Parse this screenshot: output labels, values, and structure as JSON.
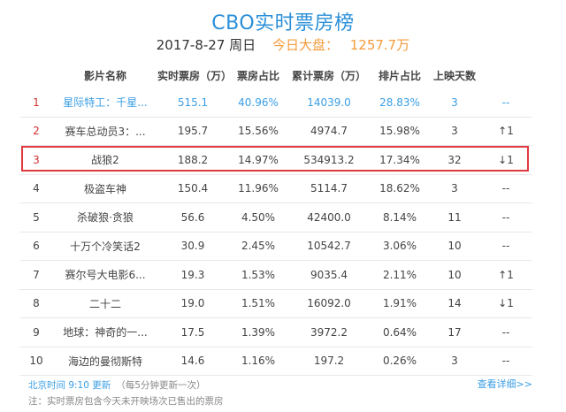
{
  "header": {
    "title": "CBO实时票房榜",
    "date": "2017-8-27 周日",
    "total_label": "今日大盘：",
    "total_value": "1257.7万"
  },
  "table": {
    "columns": [
      "影片名称",
      "实时票房（万）",
      "票房占比",
      "累计票房（万）",
      "排片占比",
      "上映天数"
    ],
    "rows": [
      {
        "rank": "1",
        "name": "星际特工：千星...",
        "realtime": "515.1",
        "share": "40.96%",
        "cumulative": "14039.0",
        "screen": "28.83%",
        "days": "3",
        "trend": "--",
        "trend_dir": "flat"
      },
      {
        "rank": "2",
        "name": "赛车总动员3：...",
        "realtime": "195.7",
        "share": "15.56%",
        "cumulative": "4974.7",
        "screen": "15.98%",
        "days": "3",
        "trend": "↑1",
        "trend_dir": "up"
      },
      {
        "rank": "3",
        "name": "战狼2",
        "realtime": "188.2",
        "share": "14.97%",
        "cumulative": "534913.2",
        "screen": "17.34%",
        "days": "32",
        "trend": "↓1",
        "trend_dir": "down"
      },
      {
        "rank": "4",
        "name": "极盗车神",
        "realtime": "150.4",
        "share": "11.96%",
        "cumulative": "5114.7",
        "screen": "18.62%",
        "days": "3",
        "trend": "--",
        "trend_dir": "flat"
      },
      {
        "rank": "5",
        "name": "杀破狼·贪狼",
        "realtime": "56.6",
        "share": "4.50%",
        "cumulative": "42400.0",
        "screen": "8.14%",
        "days": "11",
        "trend": "--",
        "trend_dir": "flat"
      },
      {
        "rank": "6",
        "name": "十万个冷笑话2",
        "realtime": "30.9",
        "share": "2.45%",
        "cumulative": "10542.7",
        "screen": "3.06%",
        "days": "10",
        "trend": "--",
        "trend_dir": "flat"
      },
      {
        "rank": "7",
        "name": "赛尔号大电影6...",
        "realtime": "19.3",
        "share": "1.53%",
        "cumulative": "9035.4",
        "screen": "2.11%",
        "days": "10",
        "trend": "↑1",
        "trend_dir": "up"
      },
      {
        "rank": "8",
        "name": "二十二",
        "realtime": "19.0",
        "share": "1.51%",
        "cumulative": "16092.0",
        "screen": "1.91%",
        "days": "14",
        "trend": "↓1",
        "trend_dir": "down"
      },
      {
        "rank": "9",
        "name": "地球：神奇的一...",
        "realtime": "17.5",
        "share": "1.39%",
        "cumulative": "3972.2",
        "screen": "0.64%",
        "days": "17",
        "trend": "--",
        "trend_dir": "flat"
      },
      {
        "rank": "10",
        "name": "海边的曼彻斯特",
        "realtime": "14.6",
        "share": "1.16%",
        "cumulative": "197.2",
        "screen": "0.26%",
        "days": "3",
        "trend": "--",
        "trend_dir": "flat"
      }
    ]
  },
  "footer": {
    "update_time": "北京时间 9:10 更新",
    "update_note": "（每5分钟更新一次）",
    "more_link": "查看详细>>",
    "note": "注：实时票房包含今天未开映场次已售出的票房"
  },
  "colors": {
    "accent": "#2a8fd8",
    "total": "#f39c3c",
    "highlight_border": "#e0393e",
    "trend_up": "#e02020",
    "trend_down": "#21a35a"
  }
}
